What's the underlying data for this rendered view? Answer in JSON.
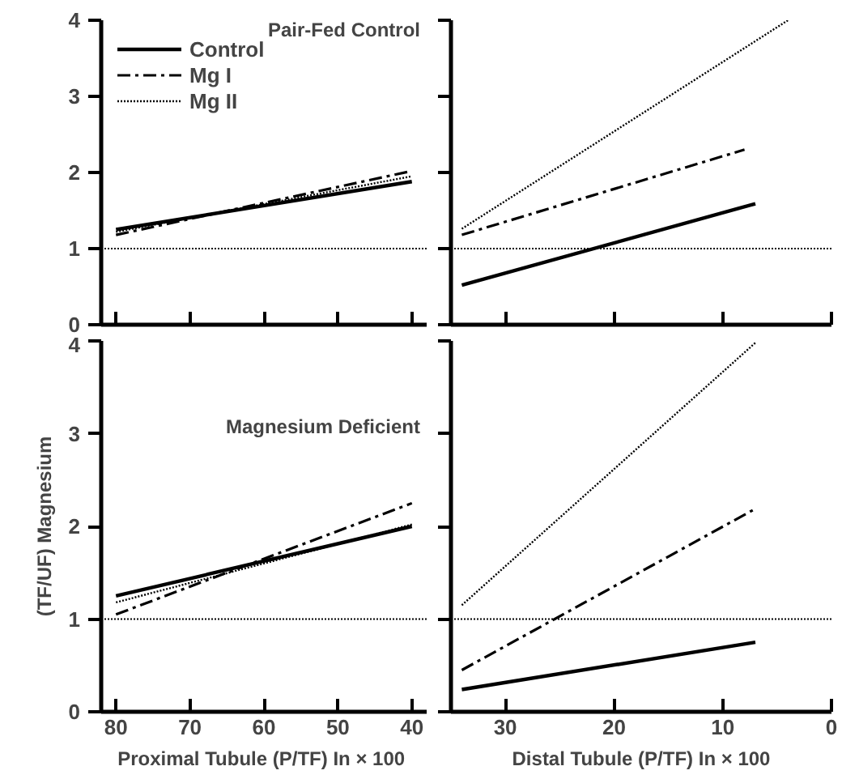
{
  "chart_data": [
    {
      "type": "line",
      "annotations": [
        "Pair-Fed Control"
      ],
      "xlim": [
        82,
        38
      ],
      "ylim": [
        0,
        4
      ],
      "xticks": [
        {
          "value": 80,
          "label": null
        },
        {
          "value": 70,
          "label": null
        },
        {
          "value": 60,
          "label": null
        },
        {
          "value": 50,
          "label": null
        },
        {
          "value": 40,
          "label": null
        }
      ],
      "yticks": [
        0,
        1,
        2,
        3,
        4
      ],
      "tick_labels": "y",
      "legend": "top left",
      "grid": false,
      "ref_lines": [
        {
          "axis": "y",
          "value": 1,
          "line_style": "dotted"
        }
      ],
      "series": [
        {
          "name": "Control",
          "color": "#000000",
          "line_style": "solid",
          "x": [
            80,
            40
          ],
          "values": [
            1.25,
            1.88
          ]
        },
        {
          "name": "Mg I",
          "color": "#000000",
          "line_style": "dashed",
          "x": [
            80,
            40
          ],
          "values": [
            1.18,
            2.02
          ]
        },
        {
          "name": "Mg II",
          "color": "#000000",
          "line_style": "dotted",
          "x": [
            80,
            40
          ],
          "values": [
            1.22,
            1.95
          ]
        }
      ]
    },
    {
      "type": "line",
      "xlim": [
        35,
        0
      ],
      "ylim": [
        0,
        4
      ],
      "xticks": [
        {
          "value": 30,
          "label": null
        },
        {
          "value": 20,
          "label": null
        },
        {
          "value": 10,
          "label": null
        },
        {
          "value": 0,
          "label": null
        }
      ],
      "yticks": [
        {
          "value": 0,
          "label": null
        },
        {
          "value": 1,
          "label": null
        },
        {
          "value": 2,
          "label": null
        },
        {
          "value": 3,
          "label": null
        },
        {
          "value": 4,
          "label": null
        }
      ],
      "tick_labels": false,
      "grid": false,
      "ref_lines": [
        {
          "axis": "y",
          "value": 1,
          "line_style": "dotted"
        }
      ],
      "series": [
        {
          "color": "#000000",
          "line_style": "solid",
          "x": [
            34,
            7
          ],
          "values": [
            0.52,
            1.59
          ]
        },
        {
          "color": "#000000",
          "line_style": "dashed",
          "x": [
            34,
            8
          ],
          "values": [
            1.18,
            2.3
          ]
        },
        {
          "color": "#000000",
          "line_style": "dotted",
          "x": [
            34,
            4
          ],
          "values": [
            1.26,
            4.0
          ]
        }
      ]
    },
    {
      "type": "line",
      "xlabel": "Proximal Tubule  (P/TF) In × 100",
      "ylabel": "(TF/UF) Magnesium",
      "annotations": [
        "Magnesium Deficient"
      ],
      "xlim": [
        82,
        38
      ],
      "ylim": [
        0,
        4
      ],
      "xticks": [
        80,
        70,
        60,
        50,
        40
      ],
      "yticks": [
        0,
        1,
        2,
        3,
        4
      ],
      "grid": false,
      "ref_lines": [
        {
          "axis": "y",
          "value": 1,
          "line_style": "dotted"
        }
      ],
      "series": [
        {
          "color": "#000000",
          "line_style": "solid",
          "x": [
            80,
            40
          ],
          "values": [
            1.25,
            2.0
          ]
        },
        {
          "color": "#000000",
          "line_style": "dashed",
          "x": [
            80,
            40
          ],
          "values": [
            1.05,
            2.25
          ]
        },
        {
          "color": "#000000",
          "line_style": "dotted",
          "x": [
            80,
            40
          ],
          "values": [
            1.18,
            2.02
          ]
        }
      ]
    },
    {
      "type": "line",
      "xlabel": "Distal Tubule (P/TF) In × 100",
      "xlim": [
        35,
        0
      ],
      "ylim": [
        0,
        4
      ],
      "xticks": [
        30,
        20,
        10,
        0
      ],
      "yticks": [
        {
          "value": 0,
          "label": null
        },
        {
          "value": 1,
          "label": null
        },
        {
          "value": 2,
          "label": null
        },
        {
          "value": 3,
          "label": null
        },
        {
          "value": 4,
          "label": null
        }
      ],
      "tick_labels": "x",
      "grid": false,
      "ref_lines": [
        {
          "axis": "y",
          "value": 1,
          "line_style": "dotted"
        }
      ],
      "series": [
        {
          "color": "#000000",
          "line_style": "solid",
          "x": [
            34,
            7
          ],
          "values": [
            0.24,
            0.75
          ]
        },
        {
          "color": "#000000",
          "line_style": "dashed",
          "x": [
            34,
            7
          ],
          "values": [
            0.45,
            2.19
          ]
        },
        {
          "color": "#000000",
          "line_style": "dotted",
          "x": [
            34,
            7
          ],
          "values": [
            1.15,
            3.98
          ]
        }
      ]
    }
  ]
}
